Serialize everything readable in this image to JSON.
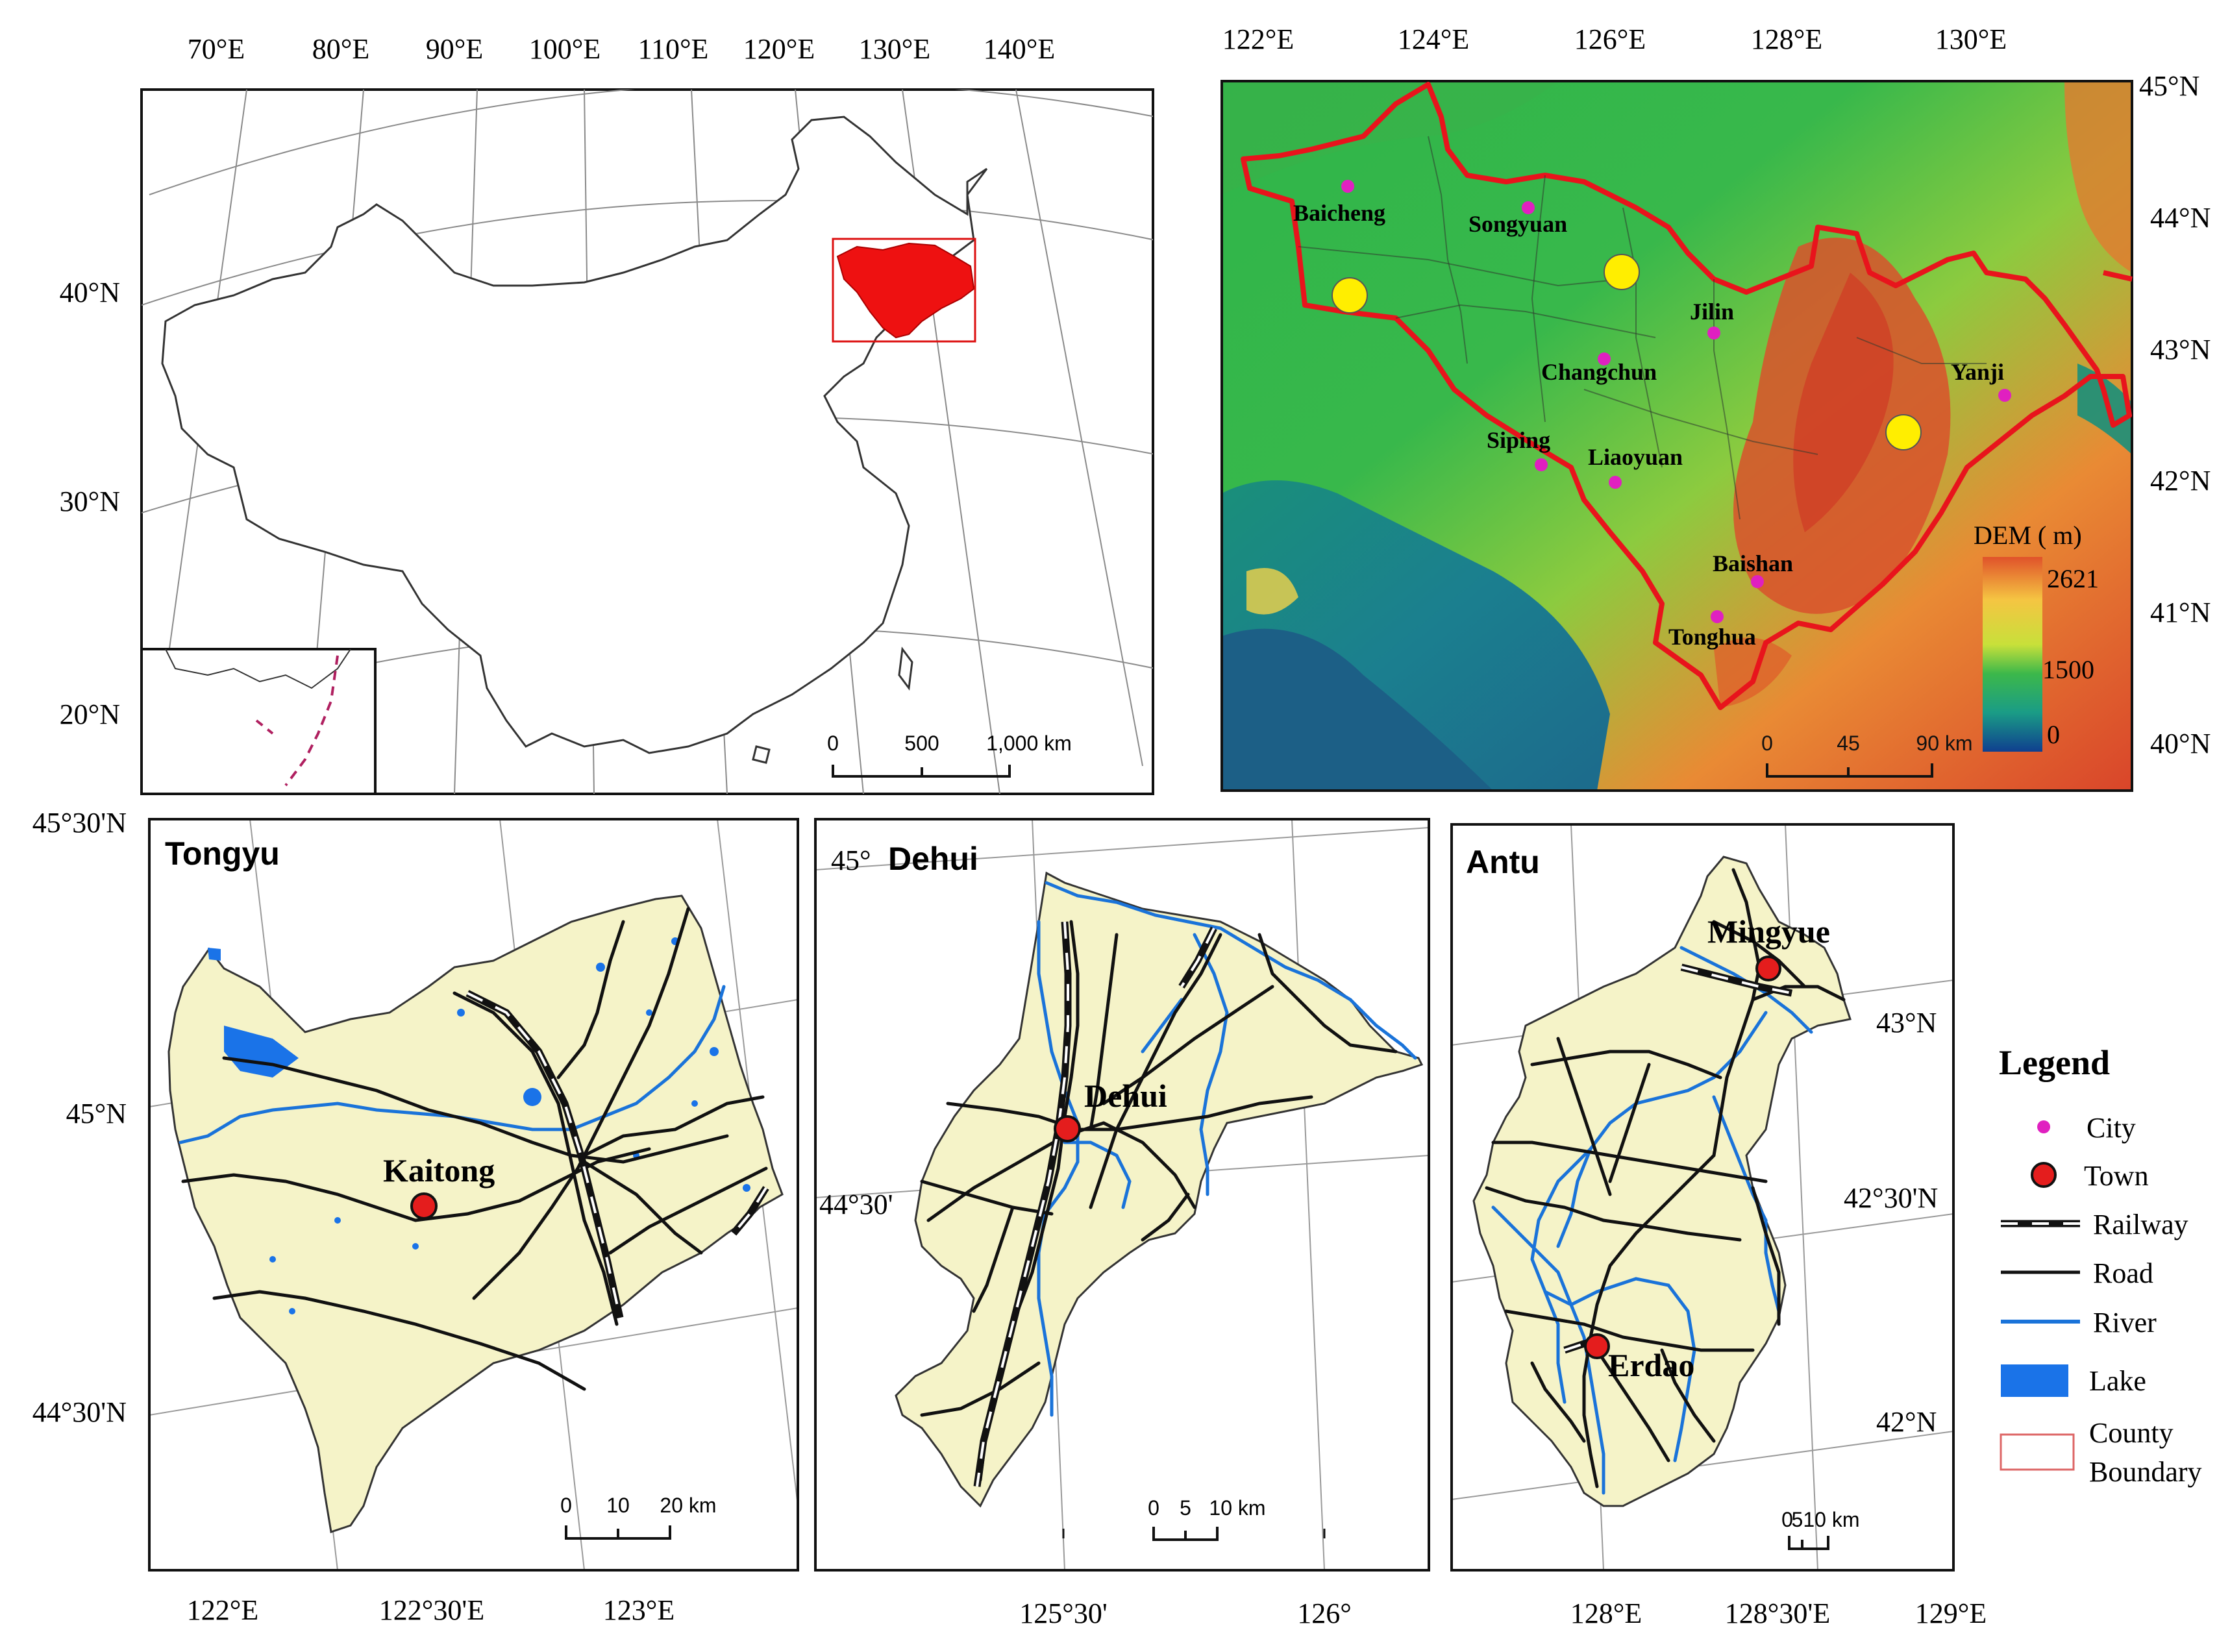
{
  "overview": {
    "lon_labels": [
      "70°E",
      "80°E",
      "90°E",
      "100°E",
      "110°E",
      "120°E",
      "130°E",
      "140°E"
    ],
    "lat_labels": [
      "40°N",
      "30°N",
      "20°N"
    ],
    "scale": {
      "t0": "0",
      "t1": "500",
      "t2": "1,000 km"
    }
  },
  "dem_panel": {
    "lon_labels": [
      "122°E",
      "124°E",
      "126°E",
      "128°E",
      "130°E"
    ],
    "lat_labels": [
      "45°N",
      "44°N",
      "43°N",
      "42°N",
      "41°N",
      "40°N"
    ],
    "cities": [
      "Baicheng",
      "Songyuan",
      "Jilin",
      "Changchun",
      "Siping",
      "Liaoyuan",
      "Yanji",
      "Baishan",
      "Tonghua"
    ],
    "colorbar": {
      "title": "DEM ( m)",
      "max": "2621",
      "mid": "1500",
      "min": "0"
    },
    "scale": {
      "t0": "0",
      "t1": "45",
      "t2": "90 km"
    },
    "colors": {
      "high": "#d9402a",
      "mid": "#f5c542",
      "green": "#3cb84a",
      "low": "#0f4f9a",
      "boundary": "#e8141c",
      "city": "#e020c0",
      "site": "#ffee00"
    }
  },
  "tongyu": {
    "title": "Tongyu",
    "town": "Kaitong",
    "lat_labels": [
      "45°30'N",
      "45°N",
      "44°30'N"
    ],
    "lon_labels": [
      "122°E",
      "122°30'E",
      "123°E"
    ],
    "scale": {
      "t0": "0",
      "t1": "10",
      "t2": "20 km"
    }
  },
  "dehui": {
    "title": "Dehui",
    "town": "Dehui",
    "lat_labels": [
      "45°",
      "44°30'"
    ],
    "lon_labels": [
      "125°30'",
      "126°"
    ],
    "scale": {
      "t0": "0",
      "t1": "5",
      "t2": "10 km"
    }
  },
  "antu": {
    "title": "Antu",
    "towns": [
      "Mingyue",
      "Erdao"
    ],
    "lat_labels": [
      "43°N",
      "42°30'N",
      "42°N"
    ],
    "lon_labels": [
      "128°E",
      "128°30'E",
      "129°E"
    ],
    "scale": {
      "t0": "0",
      "t1": "510 km"
    }
  },
  "legend": {
    "title": "Legend",
    "items": [
      "City",
      "Town",
      "Railway",
      "Road",
      "River",
      "Lake",
      "County",
      "Boundary"
    ]
  }
}
